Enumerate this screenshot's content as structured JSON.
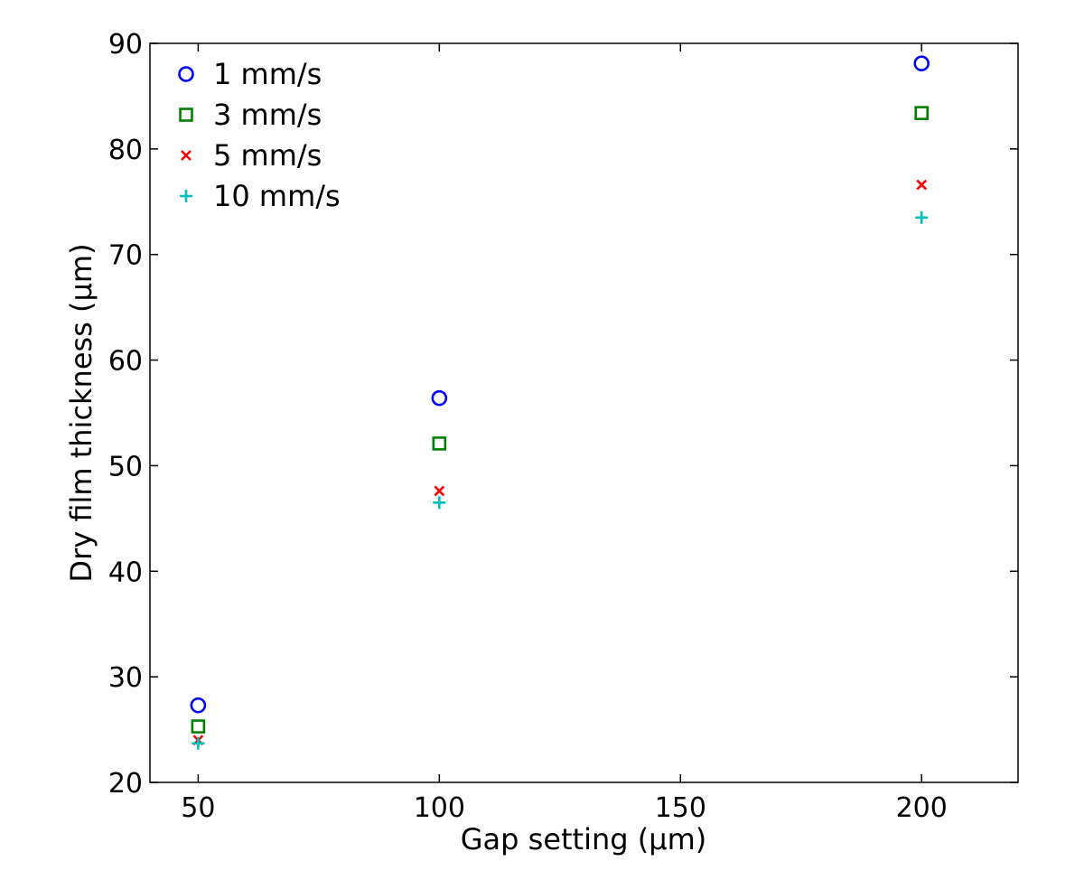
{
  "chart_data": {
    "type": "scatter",
    "title": "",
    "xlabel": "Gap setting (µm)",
    "ylabel": "Dry film thickness (µm)",
    "xlim": [
      40,
      220
    ],
    "ylim": [
      20,
      90
    ],
    "xticks": [
      50,
      100,
      150,
      200
    ],
    "yticks": [
      20,
      30,
      40,
      50,
      60,
      70,
      80,
      90
    ],
    "grid": false,
    "legend_position": "top-left",
    "series": [
      {
        "name": "1 mm/s",
        "marker": "circle",
        "color": "#0000ff",
        "x": [
          50,
          100,
          200
        ],
        "y": [
          27.3,
          56.4,
          88.1
        ]
      },
      {
        "name": "3 mm/s",
        "marker": "square",
        "color": "#008000",
        "x": [
          50,
          100,
          200
        ],
        "y": [
          25.3,
          52.1,
          83.4
        ]
      },
      {
        "name": "5 mm/s",
        "marker": "x",
        "color": "#ff0000",
        "x": [
          50,
          100,
          200
        ],
        "y": [
          24.0,
          47.6,
          76.6
        ]
      },
      {
        "name": "10 mm/s",
        "marker": "plus",
        "color": "#00bfbf",
        "x": [
          50,
          100,
          200
        ],
        "y": [
          23.7,
          46.5,
          73.5
        ]
      }
    ]
  }
}
